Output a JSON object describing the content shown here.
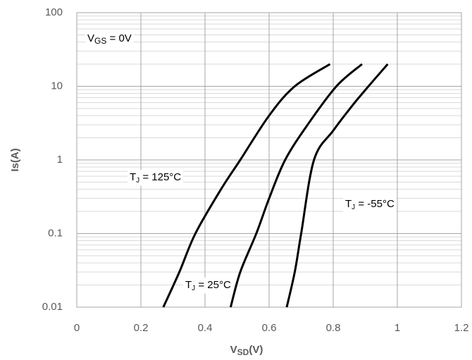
{
  "chart_data": {
    "type": "line",
    "log_y": true,
    "grid": true,
    "minor_grid": true,
    "xlim": [
      0,
      1.2
    ],
    "xticks": [
      0,
      0.2,
      0.4,
      0.6,
      0.8,
      1,
      1.2
    ],
    "ylim": [
      0.01,
      100
    ],
    "yticks": [
      0.01,
      0.1,
      1,
      10,
      100
    ],
    "x_label": {
      "text": "V",
      "sub": "SD",
      "rest": "(V)"
    },
    "y_label": "Is(A)",
    "annotation": {
      "text": "V",
      "sub": "GS",
      "rest": " = 0V"
    },
    "series": [
      {
        "label": {
          "text": "T",
          "sub": "J",
          "rest": " = 125°C"
        },
        "color": "#000000",
        "x": [
          0.27,
          0.32,
          0.37,
          0.45,
          0.51,
          0.6,
          0.68,
          0.79
        ],
        "values": [
          0.01,
          0.03,
          0.1,
          0.4,
          1,
          4,
          10,
          20
        ]
      },
      {
        "label": {
          "text": "T",
          "sub": "J",
          "rest": " = 25°C"
        },
        "color": "#000000",
        "x": [
          0.48,
          0.51,
          0.56,
          0.6,
          0.65,
          0.72,
          0.81,
          0.89
        ],
        "values": [
          0.01,
          0.03,
          0.1,
          0.3,
          1,
          3,
          10,
          20
        ]
      },
      {
        "label": {
          "text": "T",
          "sub": "J",
          "rest": " = -55°C"
        },
        "color": "#000000",
        "x": [
          0.655,
          0.68,
          0.7,
          0.74,
          0.8,
          0.86,
          0.91,
          0.97
        ],
        "values": [
          0.01,
          0.03,
          0.1,
          1,
          2.5,
          5.5,
          10,
          20
        ]
      }
    ]
  }
}
